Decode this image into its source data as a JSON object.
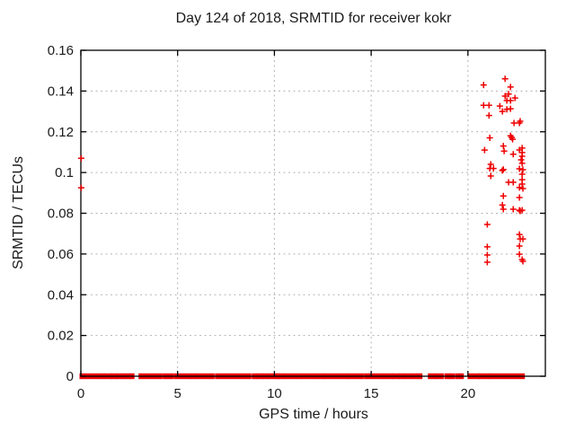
{
  "chart_data": {
    "type": "scatter",
    "title": "Day 124 of 2018, SRMTID for receiver kokr",
    "xlabel": "GPS time / hours",
    "ylabel": "SRMTID / TECUs",
    "xlim": [
      0,
      24
    ],
    "ylim": [
      0,
      0.16
    ],
    "xticks": [
      0,
      5,
      10,
      15,
      20
    ],
    "xtick_labels": [
      "0",
      "5",
      "10",
      "15",
      "20"
    ],
    "yticks": [
      0,
      0.02,
      0.04,
      0.06,
      0.08,
      0.1,
      0.12,
      0.14,
      0.16
    ],
    "ytick_labels": [
      "0",
      "0.02",
      "0.04",
      "0.06",
      "0.08",
      "0.1",
      "0.12",
      "0.14",
      "0.16"
    ],
    "grid": true,
    "legend": "none",
    "marker": "+",
    "marker_color": "#ee0000",
    "axis_color": "#000000",
    "grid_color": "#b3b3b3",
    "series": [
      {
        "name": "SRMTID",
        "points": [
          [
            0.02,
            0.107
          ],
          [
            0.02,
            0.0925
          ],
          [
            20.81,
            0.143
          ],
          [
            20.81,
            0.133
          ],
          [
            20.86,
            0.111
          ],
          [
            21.0,
            0.0745
          ],
          [
            21.0,
            0.0635
          ],
          [
            21.0,
            0.0595
          ],
          [
            21.0,
            0.056
          ],
          [
            21.09,
            0.133
          ],
          [
            21.09,
            0.128
          ],
          [
            21.13,
            0.117
          ],
          [
            21.18,
            0.104
          ],
          [
            21.13,
            0.102
          ],
          [
            21.18,
            0.0983
          ],
          [
            21.32,
            0.102
          ],
          [
            21.65,
            0.1326
          ],
          [
            21.78,
            0.13
          ],
          [
            21.78,
            0.101
          ],
          [
            21.78,
            0.084
          ],
          [
            21.83,
            0.113
          ],
          [
            21.87,
            0.1105
          ],
          [
            21.83,
            0.1015
          ],
          [
            21.83,
            0.0885
          ],
          [
            21.83,
            0.082
          ],
          [
            21.92,
            0.146
          ],
          [
            21.92,
            0.1375
          ],
          [
            22.01,
            0.1353
          ],
          [
            22.01,
            0.131
          ],
          [
            22.1,
            0.1385
          ],
          [
            22.1,
            0.0952
          ],
          [
            22.2,
            0.142
          ],
          [
            22.2,
            0.1353
          ],
          [
            22.2,
            0.1313
          ],
          [
            22.2,
            0.118
          ],
          [
            22.26,
            0.1172
          ],
          [
            22.31,
            0.1163
          ],
          [
            22.34,
            0.109
          ],
          [
            22.34,
            0.0952
          ],
          [
            22.34,
            0.082
          ],
          [
            22.38,
            0.1243
          ],
          [
            22.43,
            0.1366
          ],
          [
            22.66,
            0.1243
          ],
          [
            22.66,
            0.1111
          ],
          [
            22.66,
            0.1018
          ],
          [
            22.66,
            0.0926
          ],
          [
            22.66,
            0.0877
          ],
          [
            22.66,
            0.0815
          ],
          [
            22.66,
            0.0696
          ],
          [
            22.66,
            0.0639
          ],
          [
            22.66,
            0.0599
          ],
          [
            22.7,
            0.1252
          ],
          [
            22.7,
            0.0811
          ],
          [
            22.7,
            0.0674
          ],
          [
            22.75,
            0.1062
          ],
          [
            22.8,
            0.112
          ],
          [
            22.8,
            0.1098
          ],
          [
            22.8,
            0.108
          ],
          [
            22.8,
            0.1045
          ],
          [
            22.8,
            0.0992
          ],
          [
            22.8,
            0.0965
          ],
          [
            22.8,
            0.0943
          ],
          [
            22.8,
            0.0815
          ],
          [
            22.8,
            0.0573
          ],
          [
            22.84,
            0.1014
          ],
          [
            22.84,
            0.0921
          ],
          [
            22.84,
            0.0674
          ],
          [
            22.84,
            0.0564
          ]
        ],
        "zero_value_runs_hours": [
          [
            0.0,
            0.95
          ],
          [
            1.05,
            1.15
          ],
          [
            1.25,
            1.55
          ],
          [
            1.63,
            1.8
          ],
          [
            1.88,
            2.05
          ],
          [
            2.14,
            2.28
          ],
          [
            2.38,
            2.5
          ],
          [
            2.58,
            2.7
          ],
          [
            3.05,
            3.72
          ],
          [
            3.84,
            4.15
          ],
          [
            4.3,
            4.42
          ],
          [
            4.55,
            4.75
          ],
          [
            4.9,
            5.18
          ],
          [
            5.3,
            5.68
          ],
          [
            5.78,
            5.9
          ],
          [
            6.0,
            6.58
          ],
          [
            6.7,
            6.84
          ],
          [
            7.0,
            7.58
          ],
          [
            7.7,
            8.74
          ],
          [
            8.9,
            9.1
          ],
          [
            9.18,
            9.35
          ],
          [
            9.45,
            9.62
          ],
          [
            9.72,
            10.08
          ],
          [
            10.15,
            10.22
          ],
          [
            10.3,
            10.45
          ],
          [
            10.55,
            11.35
          ],
          [
            11.45,
            12.18
          ],
          [
            12.28,
            12.55
          ],
          [
            12.65,
            13.28
          ],
          [
            13.4,
            13.75
          ],
          [
            13.85,
            14.2
          ],
          [
            14.33,
            14.55
          ],
          [
            14.7,
            15.52
          ],
          [
            15.62,
            15.75
          ],
          [
            15.85,
            16.08
          ],
          [
            16.18,
            16.4
          ],
          [
            16.5,
            16.7
          ],
          [
            16.8,
            17.0
          ],
          [
            17.1,
            17.35
          ],
          [
            17.45,
            17.58
          ],
          [
            18.0,
            18.33
          ],
          [
            18.43,
            18.68
          ],
          [
            18.85,
            19.0
          ],
          [
            19.1,
            19.25
          ],
          [
            19.4,
            19.5
          ],
          [
            19.62,
            19.72
          ],
          [
            20.05,
            20.55
          ],
          [
            20.63,
            21.08
          ],
          [
            21.18,
            22.87
          ]
        ]
      }
    ]
  }
}
